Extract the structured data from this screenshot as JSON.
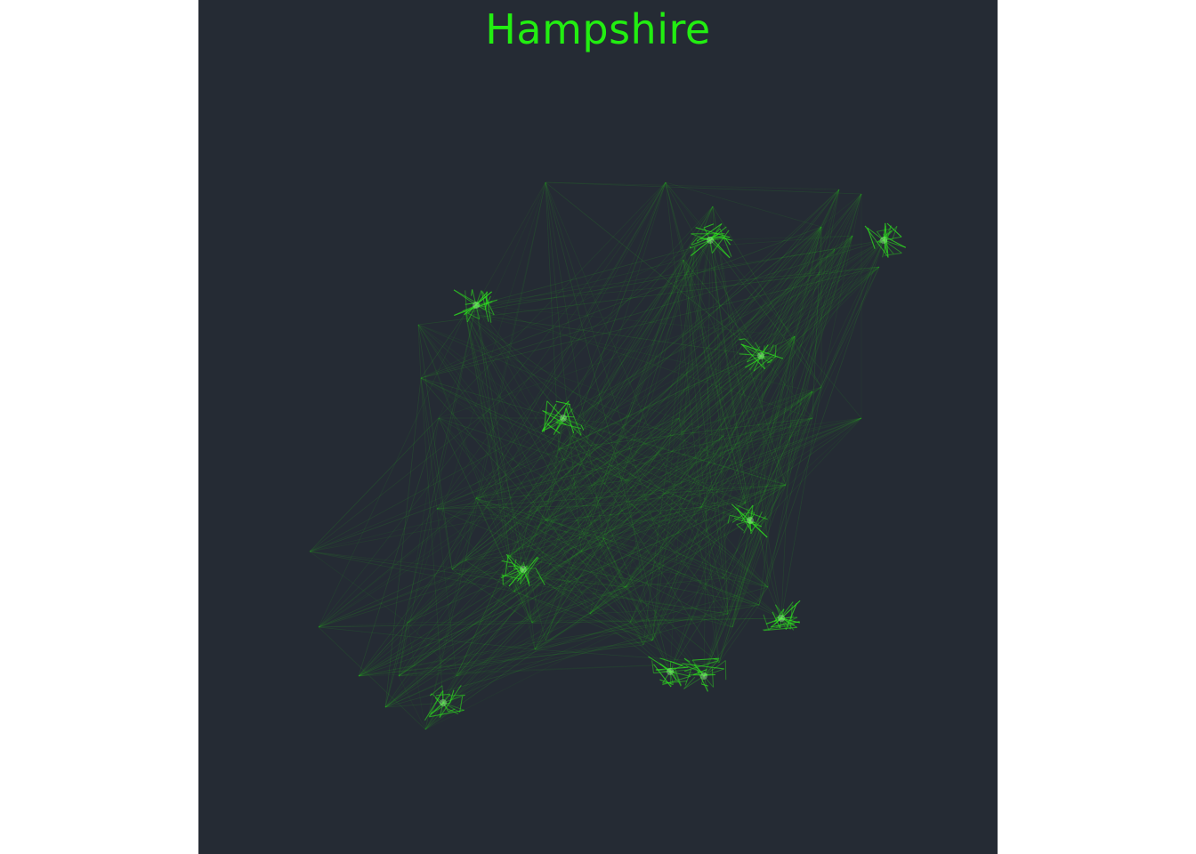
{
  "map": {
    "title": "Hampshire",
    "colors": {
      "background": "#252b34",
      "page": "#ffffff",
      "title": "#22ee11",
      "edge": "#2ee61e",
      "hub_glow": "#b8ffb0"
    }
  }
}
